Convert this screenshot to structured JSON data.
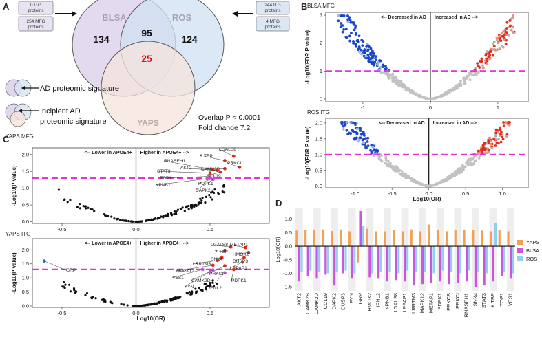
{
  "panels": {
    "a": "A",
    "b": "B",
    "c": "C",
    "d": "D"
  },
  "venn": {
    "sets": [
      "BLSA",
      "ROS",
      "YAPS"
    ],
    "counts": {
      "blsa_only": "134",
      "blsa_ros": "95",
      "ros_only": "124",
      "all_three": "25"
    },
    "left_boxes": [
      "0 ITG proteins",
      "254 MFG proteins"
    ],
    "right_boxes": [
      "244 ITG proteins",
      "4 MFG proteins"
    ],
    "legend_ad": "AD proteomic signature",
    "legend_incipient": "Incipient AD proteomic signature",
    "overlap": "Overlap P < 0.0001",
    "fold_change": "Fold change 7.2",
    "colors": {
      "blsa": "#d9cdea",
      "ros": "#cfe0f2",
      "yaps": "#f6e4dc",
      "highlight": "#e01010"
    }
  },
  "chart_data": [
    {
      "id": "b_top",
      "type": "scatter",
      "title": "BLSA MFG",
      "xlabel": "",
      "ylabel": "-Log10(FDR P value)",
      "xlim": [
        -1.55,
        1.45
      ],
      "ylim": [
        -0.1,
        3.1
      ],
      "xticks": [
        -1,
        0,
        1
      ],
      "yticks": [
        0,
        1,
        2,
        3
      ],
      "threshold": 1.0,
      "left_note": "<-- Decreased in AD",
      "right_note": "Increased in AD -->"
    },
    {
      "id": "b_bottom",
      "type": "scatter",
      "title": "ROS ITG",
      "xlabel": "Log10(OR)",
      "ylabel": "-Log10(FDR P value)",
      "xlim": [
        -1.4,
        1.35
      ],
      "ylim": [
        -0.05,
        2.15
      ],
      "xticks": [
        -1.0,
        -0.5,
        0.0,
        0.5,
        1.0
      ],
      "yticks": [
        0.0,
        0.5,
        1.0,
        1.5,
        2.0
      ],
      "threshold": 1.0,
      "left_note": "<-- Decreased in AD",
      "right_note": "Increased in AD -->"
    },
    {
      "id": "c_top",
      "type": "scatter",
      "title": "YAPS MFG",
      "xlabel": "",
      "ylabel": "-Log10(P value)",
      "xlim": [
        -0.7,
        0.9
      ],
      "ylim": [
        -0.05,
        2.2
      ],
      "xticks": [
        -0.5,
        0.0,
        0.5
      ],
      "yticks": [
        0.0,
        0.5,
        1.0,
        1.5,
        2.0
      ],
      "threshold": 1.3,
      "left_note": "<-- Lower in APOE4+",
      "right_note": "Higher in APOE4+ -->",
      "labels": [
        "LGALS8",
        "TBP",
        "PRKCI",
        "CAMK2D",
        "RNASEH1",
        "AKT2",
        "CCL19",
        "STAT3",
        "TOP1",
        "PDPK1",
        "KPNB1",
        "DAPK2"
      ]
    },
    {
      "id": "c_bottom",
      "type": "scatter",
      "title": "YAPS ITG",
      "xlabel": "Log10(OR)",
      "ylabel": "-Log10(P value)",
      "xlim": [
        -0.7,
        0.9
      ],
      "ylim": [
        -0.05,
        2.4
      ],
      "xticks": [
        -0.5,
        0.0,
        0.5
      ],
      "yticks": [
        0.0,
        0.5,
        1.0,
        1.5,
        2.0
      ],
      "threshold": 1.3,
      "left_note": "<-- Lower in APOE4+",
      "right_note": "Higher in APOE4+ -->",
      "labels": [
        "LGALS8",
        "METAP1",
        "TBP",
        "HMOX2",
        "SNX4",
        "DUSP3",
        "LRRTM3",
        "LRPAP1",
        "MAPK12",
        "PRKCI",
        "YES1",
        "CAMK2D",
        "PDPK1",
        "FYN",
        "IFNL2",
        "GRP"
      ]
    },
    {
      "id": "d",
      "type": "bar",
      "title": "",
      "xlabel": "",
      "ylabel": "Log10(OR)",
      "ylim": [
        -1.65,
        1.4
      ],
      "yticks": [
        -1.5,
        -1.0,
        -0.5,
        0.0,
        0.5,
        1.0
      ],
      "categories": [
        "AKT2",
        "CAMK2B",
        "CAMK2D",
        "CCL19",
        "DAPK2",
        "DUSP3",
        "FYN",
        "GRP",
        "HMOX2",
        "IFNL2",
        "KPNB1",
        "LGALS8",
        "LRPAP1",
        "LRRTM3",
        "MAPK12",
        "METAP1",
        "PDPK1",
        "PRKCB",
        "PRKCI",
        "RNASEH1",
        "SNX4",
        "STAT3",
        "TBP",
        "TOP1",
        "YES1"
      ],
      "star_category": "TBP",
      "series": [
        {
          "name": "YAPS",
          "color": "#f2a055",
          "values": [
            0.58,
            0.6,
            0.6,
            0.62,
            0.56,
            0.62,
            0.55,
            -0.6,
            0.65,
            0.55,
            0.55,
            0.6,
            0.55,
            0.62,
            0.55,
            0.8,
            0.6,
            0.55,
            0.6,
            0.6,
            0.6,
            0.58,
            0.55,
            0.6,
            0.55
          ]
        },
        {
          "name": "BLSA",
          "color": "#cc55e0",
          "values": [
            -1.3,
            -1.1,
            -1.2,
            -1.05,
            -1.45,
            -1.0,
            -1.2,
            1.3,
            -1.15,
            -1.2,
            -1.3,
            -1.25,
            -1.3,
            -1.45,
            -1.4,
            -1.35,
            -1.3,
            -1.4,
            -1.35,
            -1.3,
            -1.5,
            -1.45,
            -1.3,
            -1.1,
            -1.2
          ]
        },
        {
          "name": "ROS",
          "color": "#8fd0ee",
          "values": [
            -0.95,
            -0.9,
            -0.95,
            -1.0,
            -0.95,
            -0.9,
            -1.0,
            0.75,
            -1.0,
            -0.95,
            -0.95,
            -1.0,
            -0.9,
            -0.95,
            -0.95,
            -1.0,
            -0.9,
            -0.95,
            -1.0,
            -0.9,
            -0.95,
            -1.0,
            0.85,
            -0.95,
            -1.0
          ]
        }
      ]
    }
  ]
}
